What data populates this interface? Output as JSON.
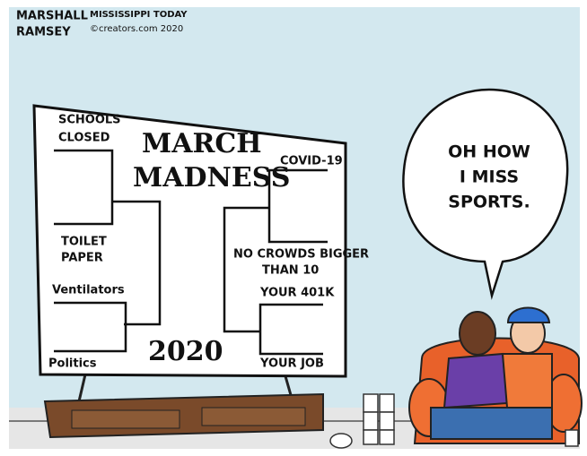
{
  "signature": {
    "artist": [
      "MARSHALL",
      "RAMSEY"
    ],
    "outlet": "MISSISSIPPI TODAY",
    "credit": "©creators.com 2020"
  },
  "bracket": {
    "title": [
      "MARCH",
      "MADNESS"
    ],
    "year": "2020",
    "left": {
      "schools": [
        "SCHOOLS",
        "CLOSED"
      ],
      "toilet_paper": [
        "TOILET",
        "PAPER"
      ],
      "ventilators": "Ventilators",
      "politics": "Politics"
    },
    "right": {
      "covid": "COVID-19",
      "crowds": [
        "NO CROWDS BIGGER",
        "THAN 10"
      ],
      "retirement": "YOUR 401K",
      "job": "YOUR JOB"
    }
  },
  "speech_bubble": {
    "lines": [
      "OH HOW",
      "I MISS",
      "SPORTS."
    ]
  }
}
